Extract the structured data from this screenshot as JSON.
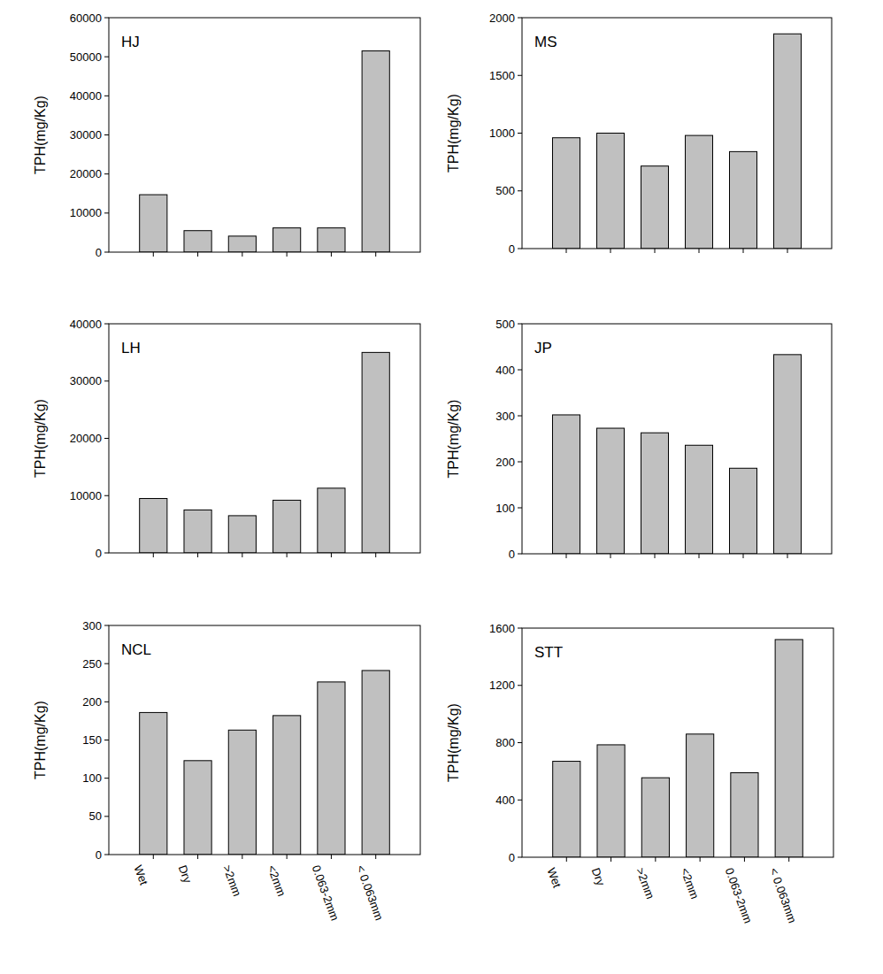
{
  "chart_data": [
    {
      "type": "bar",
      "title": "HJ",
      "ylabel": "TPH(mg/Kg)",
      "categories": [
        null,
        null,
        null,
        null,
        null,
        null
      ],
      "values": [
        14700,
        5500,
        4100,
        6200,
        6200,
        51500
      ],
      "color": "#c0c0c0",
      "ylim": [
        0,
        60000
      ],
      "yticks": [
        0,
        10000,
        20000,
        30000,
        40000,
        50000,
        60000
      ],
      "grid": false,
      "tick_labels": "y"
    },
    {
      "type": "bar",
      "title": "MS",
      "ylabel": "TPH(mg/Kg)",
      "categories": [
        null,
        null,
        null,
        null,
        null,
        null
      ],
      "values": [
        960,
        1000,
        715,
        980,
        840,
        1860
      ],
      "color": "#c0c0c0",
      "ylim": [
        0,
        2000
      ],
      "yticks": [
        0,
        500,
        1000,
        1500,
        2000
      ],
      "grid": false,
      "tick_labels": "y"
    },
    {
      "type": "bar",
      "title": "LH",
      "ylabel": "TPH(mg/Kg)",
      "categories": [
        null,
        null,
        null,
        null,
        null,
        null
      ],
      "values": [
        9500,
        7500,
        6500,
        9200,
        11300,
        35000
      ],
      "color": "#c0c0c0",
      "ylim": [
        0,
        40000
      ],
      "yticks": [
        0,
        10000,
        20000,
        30000,
        40000
      ],
      "grid": false,
      "tick_labels": "y"
    },
    {
      "type": "bar",
      "title": "JP",
      "ylabel": "TPH(mg/Kg)",
      "categories": [
        null,
        null,
        null,
        null,
        null,
        null
      ],
      "values": [
        302,
        273,
        263,
        236,
        186,
        433
      ],
      "color": "#c0c0c0",
      "ylim": [
        0,
        500
      ],
      "yticks": [
        0,
        100,
        200,
        300,
        400,
        500
      ],
      "grid": false,
      "tick_labels": "y"
    },
    {
      "type": "bar",
      "title": "NCL",
      "ylabel": "TPH(mg/Kg)",
      "categories": [
        "Wet",
        "Dry",
        ">2mm",
        "<2mm",
        "0.063-2mm",
        "< 0.063mm"
      ],
      "values": [
        186,
        123,
        163,
        182,
        226,
        241
      ],
      "color": "#c0c0c0",
      "ylim": [
        0,
        300
      ],
      "yticks": [
        0,
        50,
        100,
        150,
        200,
        250,
        300
      ],
      "grid": false
    },
    {
      "type": "bar",
      "title": "STT",
      "ylabel": "TPH(mg/Kg)",
      "categories": [
        "Wet",
        "Dry",
        ">2mm",
        "<2mm",
        "0.063-2mm",
        "< 0.063mm"
      ],
      "values": [
        670,
        785,
        555,
        860,
        590,
        1520
      ],
      "color": "#c0c0c0",
      "ylim": [
        0,
        1600
      ],
      "yticks": [
        0,
        400,
        800,
        1200,
        1600
      ],
      "grid": false
    }
  ]
}
